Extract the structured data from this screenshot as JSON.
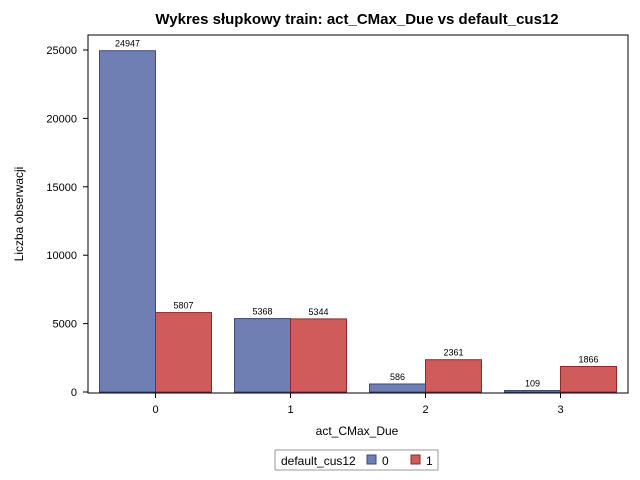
{
  "chart_data": {
    "type": "bar",
    "title": "Wykres słupkowy train: act_CMax_Due vs default_cus12",
    "xlabel": "act_CMax_Due",
    "ylabel": "Liczba obserwacji",
    "categories": [
      "0",
      "1",
      "2",
      "3"
    ],
    "series": [
      {
        "name": "0",
        "values": [
          24947,
          5368,
          586,
          109
        ],
        "color": "#6f7eb3"
      },
      {
        "name": "1",
        "values": [
          5807,
          5344,
          2361,
          1866
        ],
        "color": "#d05b5b"
      }
    ],
    "ylim": [
      0,
      26000
    ],
    "yticks": [
      0,
      5000,
      10000,
      15000,
      20000,
      25000
    ],
    "grid": false,
    "legend": {
      "title": "default_cus12",
      "placement": "bottom-center"
    }
  }
}
